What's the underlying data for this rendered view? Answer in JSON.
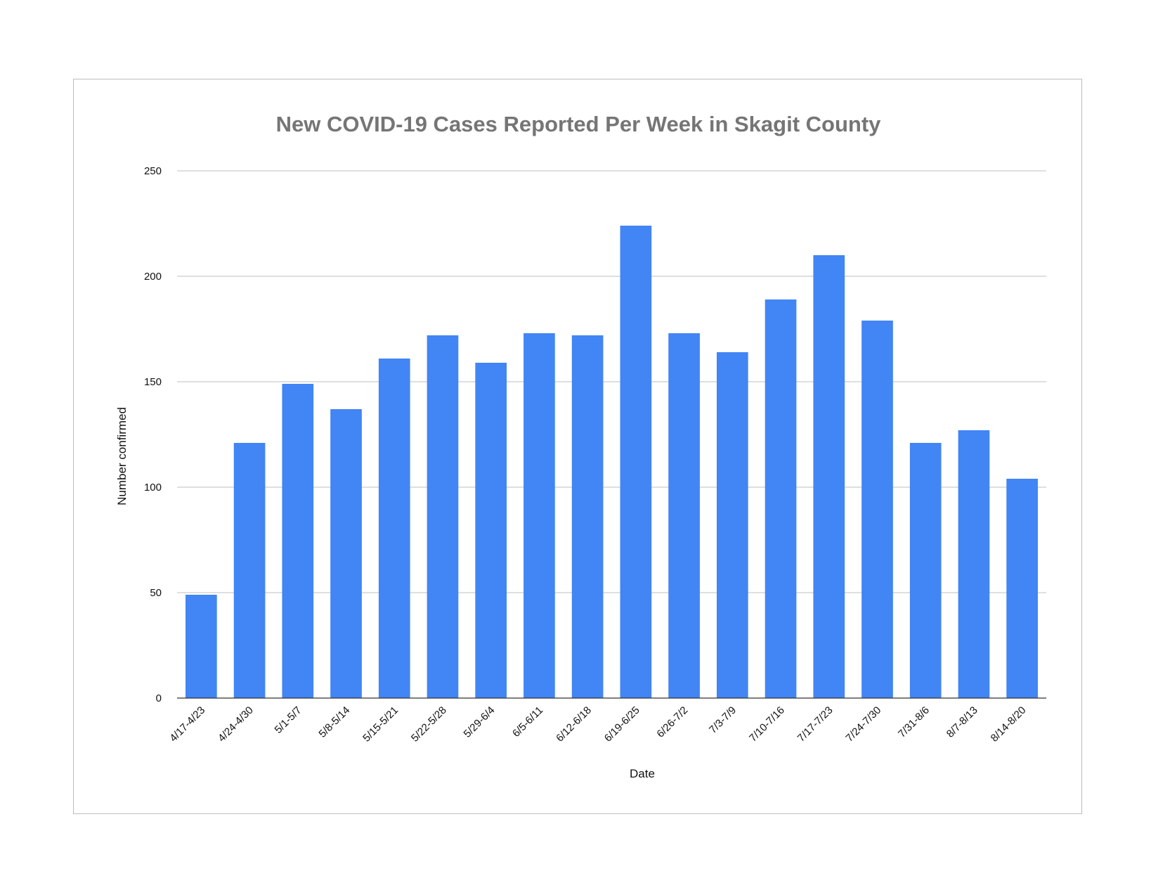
{
  "chart_data": {
    "type": "bar",
    "title": "New COVID-19 Cases Reported Per Week in Skagit County",
    "xlabel": "Date",
    "ylabel": "Number confirmed",
    "ylim": [
      0,
      250
    ],
    "yticks": [
      0,
      50,
      100,
      150,
      200,
      250
    ],
    "grid": true,
    "bar_color": "#4285f4",
    "categories": [
      "4/17-4/23",
      "4/24-4/30",
      "5/1-5/7",
      "5/8-5/14",
      "5/15-5/21",
      "5/22-5/28",
      "5/29-6/4",
      "6/5-6/11",
      "6/12-6/18",
      "6/19-6/25",
      "6/26-7/2",
      "7/3-7/9",
      "7/10-7/16",
      "7/17-7/23",
      "7/24-7/30",
      "7/31-8/6",
      "8/7-8/13",
      "8/14-8/20"
    ],
    "values": [
      49,
      121,
      149,
      137,
      161,
      172,
      159,
      173,
      172,
      224,
      173,
      164,
      189,
      210,
      179,
      121,
      127,
      104
    ]
  }
}
